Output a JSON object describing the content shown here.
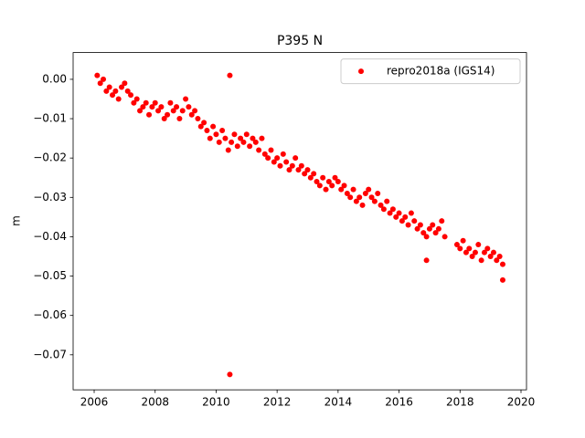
{
  "chart_data": {
    "type": "scatter",
    "title": "P395 N",
    "y_label": "m",
    "xlim": [
      2005.31,
      2020.18
    ],
    "ylim": [
      -0.0789,
      0.0068
    ],
    "xticks": [
      2006,
      2008,
      2010,
      2012,
      2014,
      2016,
      2018,
      2020
    ],
    "yticks": [
      {
        "value": 0,
        "label": "0.00"
      },
      {
        "value": -0.01,
        "label": "−0.01"
      },
      {
        "value": -0.02,
        "label": "−0.02"
      },
      {
        "value": -0.03,
        "label": "−0.03"
      },
      {
        "value": -0.04,
        "label": "−0.04"
      },
      {
        "value": -0.05,
        "label": "−0.05"
      },
      {
        "value": -0.06,
        "label": "−0.06"
      },
      {
        "value": -0.07,
        "label": "−0.07"
      }
    ],
    "legend_position": "upper right",
    "series": [
      {
        "name": "repro2018a (IGS14)",
        "color": "#ff0000",
        "x": [
          2006.1,
          2006.2,
          2006.3,
          2006.4,
          2006.5,
          2006.6,
          2006.7,
          2006.8,
          2006.9,
          2007.0,
          2007.1,
          2007.2,
          2007.3,
          2007.4,
          2007.5,
          2007.6,
          2007.7,
          2007.8,
          2007.9,
          2008.0,
          2008.1,
          2008.2,
          2008.3,
          2008.4,
          2008.5,
          2008.6,
          2008.7,
          2008.8,
          2008.9,
          2009.0,
          2009.1,
          2009.2,
          2009.3,
          2009.4,
          2009.5,
          2009.6,
          2009.7,
          2009.8,
          2009.9,
          2010.0,
          2010.1,
          2010.2,
          2010.3,
          2010.4,
          2010.5,
          2010.6,
          2010.7,
          2010.8,
          2010.9,
          2011.0,
          2011.1,
          2011.2,
          2011.3,
          2011.4,
          2011.5,
          2011.6,
          2011.7,
          2011.8,
          2011.9,
          2012.0,
          2012.1,
          2012.2,
          2012.3,
          2012.4,
          2012.5,
          2012.6,
          2012.7,
          2012.8,
          2012.9,
          2013.0,
          2013.1,
          2013.2,
          2013.3,
          2013.4,
          2013.5,
          2013.6,
          2013.7,
          2013.8,
          2013.9,
          2014.0,
          2014.1,
          2014.2,
          2014.3,
          2014.4,
          2014.5,
          2014.6,
          2014.7,
          2014.8,
          2014.9,
          2015.0,
          2015.1,
          2015.2,
          2015.3,
          2015.4,
          2015.5,
          2015.6,
          2015.7,
          2015.8,
          2015.9,
          2016.0,
          2016.1,
          2016.2,
          2016.3,
          2016.4,
          2016.5,
          2016.6,
          2016.7,
          2016.8,
          2016.9,
          2017.0,
          2017.1,
          2017.2,
          2017.3,
          2017.4,
          2017.5,
          2017.9,
          2018.0,
          2018.1,
          2018.2,
          2018.3,
          2018.4,
          2018.5,
          2018.6,
          2018.7,
          2018.8,
          2018.9,
          2019.0,
          2019.1,
          2019.2,
          2019.3,
          2019.4,
          2010.45,
          2010.45,
          2016.9,
          2019.4
        ],
        "values": [
          0.001,
          -0.001,
          0.0,
          -0.003,
          -0.002,
          -0.004,
          -0.003,
          -0.005,
          -0.002,
          -0.001,
          -0.003,
          -0.004,
          -0.006,
          -0.005,
          -0.008,
          -0.007,
          -0.006,
          -0.009,
          -0.007,
          -0.006,
          -0.008,
          -0.007,
          -0.01,
          -0.009,
          -0.006,
          -0.008,
          -0.007,
          -0.01,
          -0.008,
          -0.005,
          -0.007,
          -0.009,
          -0.008,
          -0.01,
          -0.012,
          -0.011,
          -0.013,
          -0.015,
          -0.012,
          -0.014,
          -0.016,
          -0.013,
          -0.015,
          -0.018,
          -0.016,
          -0.014,
          -0.017,
          -0.015,
          -0.016,
          -0.014,
          -0.017,
          -0.015,
          -0.016,
          -0.018,
          -0.015,
          -0.019,
          -0.02,
          -0.018,
          -0.021,
          -0.02,
          -0.022,
          -0.019,
          -0.021,
          -0.023,
          -0.022,
          -0.02,
          -0.023,
          -0.022,
          -0.024,
          -0.023,
          -0.025,
          -0.024,
          -0.026,
          -0.027,
          -0.025,
          -0.028,
          -0.026,
          -0.027,
          -0.025,
          -0.026,
          -0.028,
          -0.027,
          -0.029,
          -0.03,
          -0.028,
          -0.031,
          -0.03,
          -0.032,
          -0.029,
          -0.028,
          -0.03,
          -0.031,
          -0.029,
          -0.032,
          -0.033,
          -0.031,
          -0.034,
          -0.033,
          -0.035,
          -0.034,
          -0.036,
          -0.035,
          -0.037,
          -0.034,
          -0.036,
          -0.038,
          -0.037,
          -0.039,
          -0.04,
          -0.038,
          -0.037,
          -0.039,
          -0.038,
          -0.036,
          -0.04,
          -0.042,
          -0.043,
          -0.041,
          -0.044,
          -0.043,
          -0.045,
          -0.044,
          -0.042,
          -0.046,
          -0.044,
          -0.043,
          -0.045,
          -0.044,
          -0.046,
          -0.045,
          -0.047,
          0.001,
          -0.075,
          -0.046,
          -0.051
        ]
      }
    ]
  }
}
